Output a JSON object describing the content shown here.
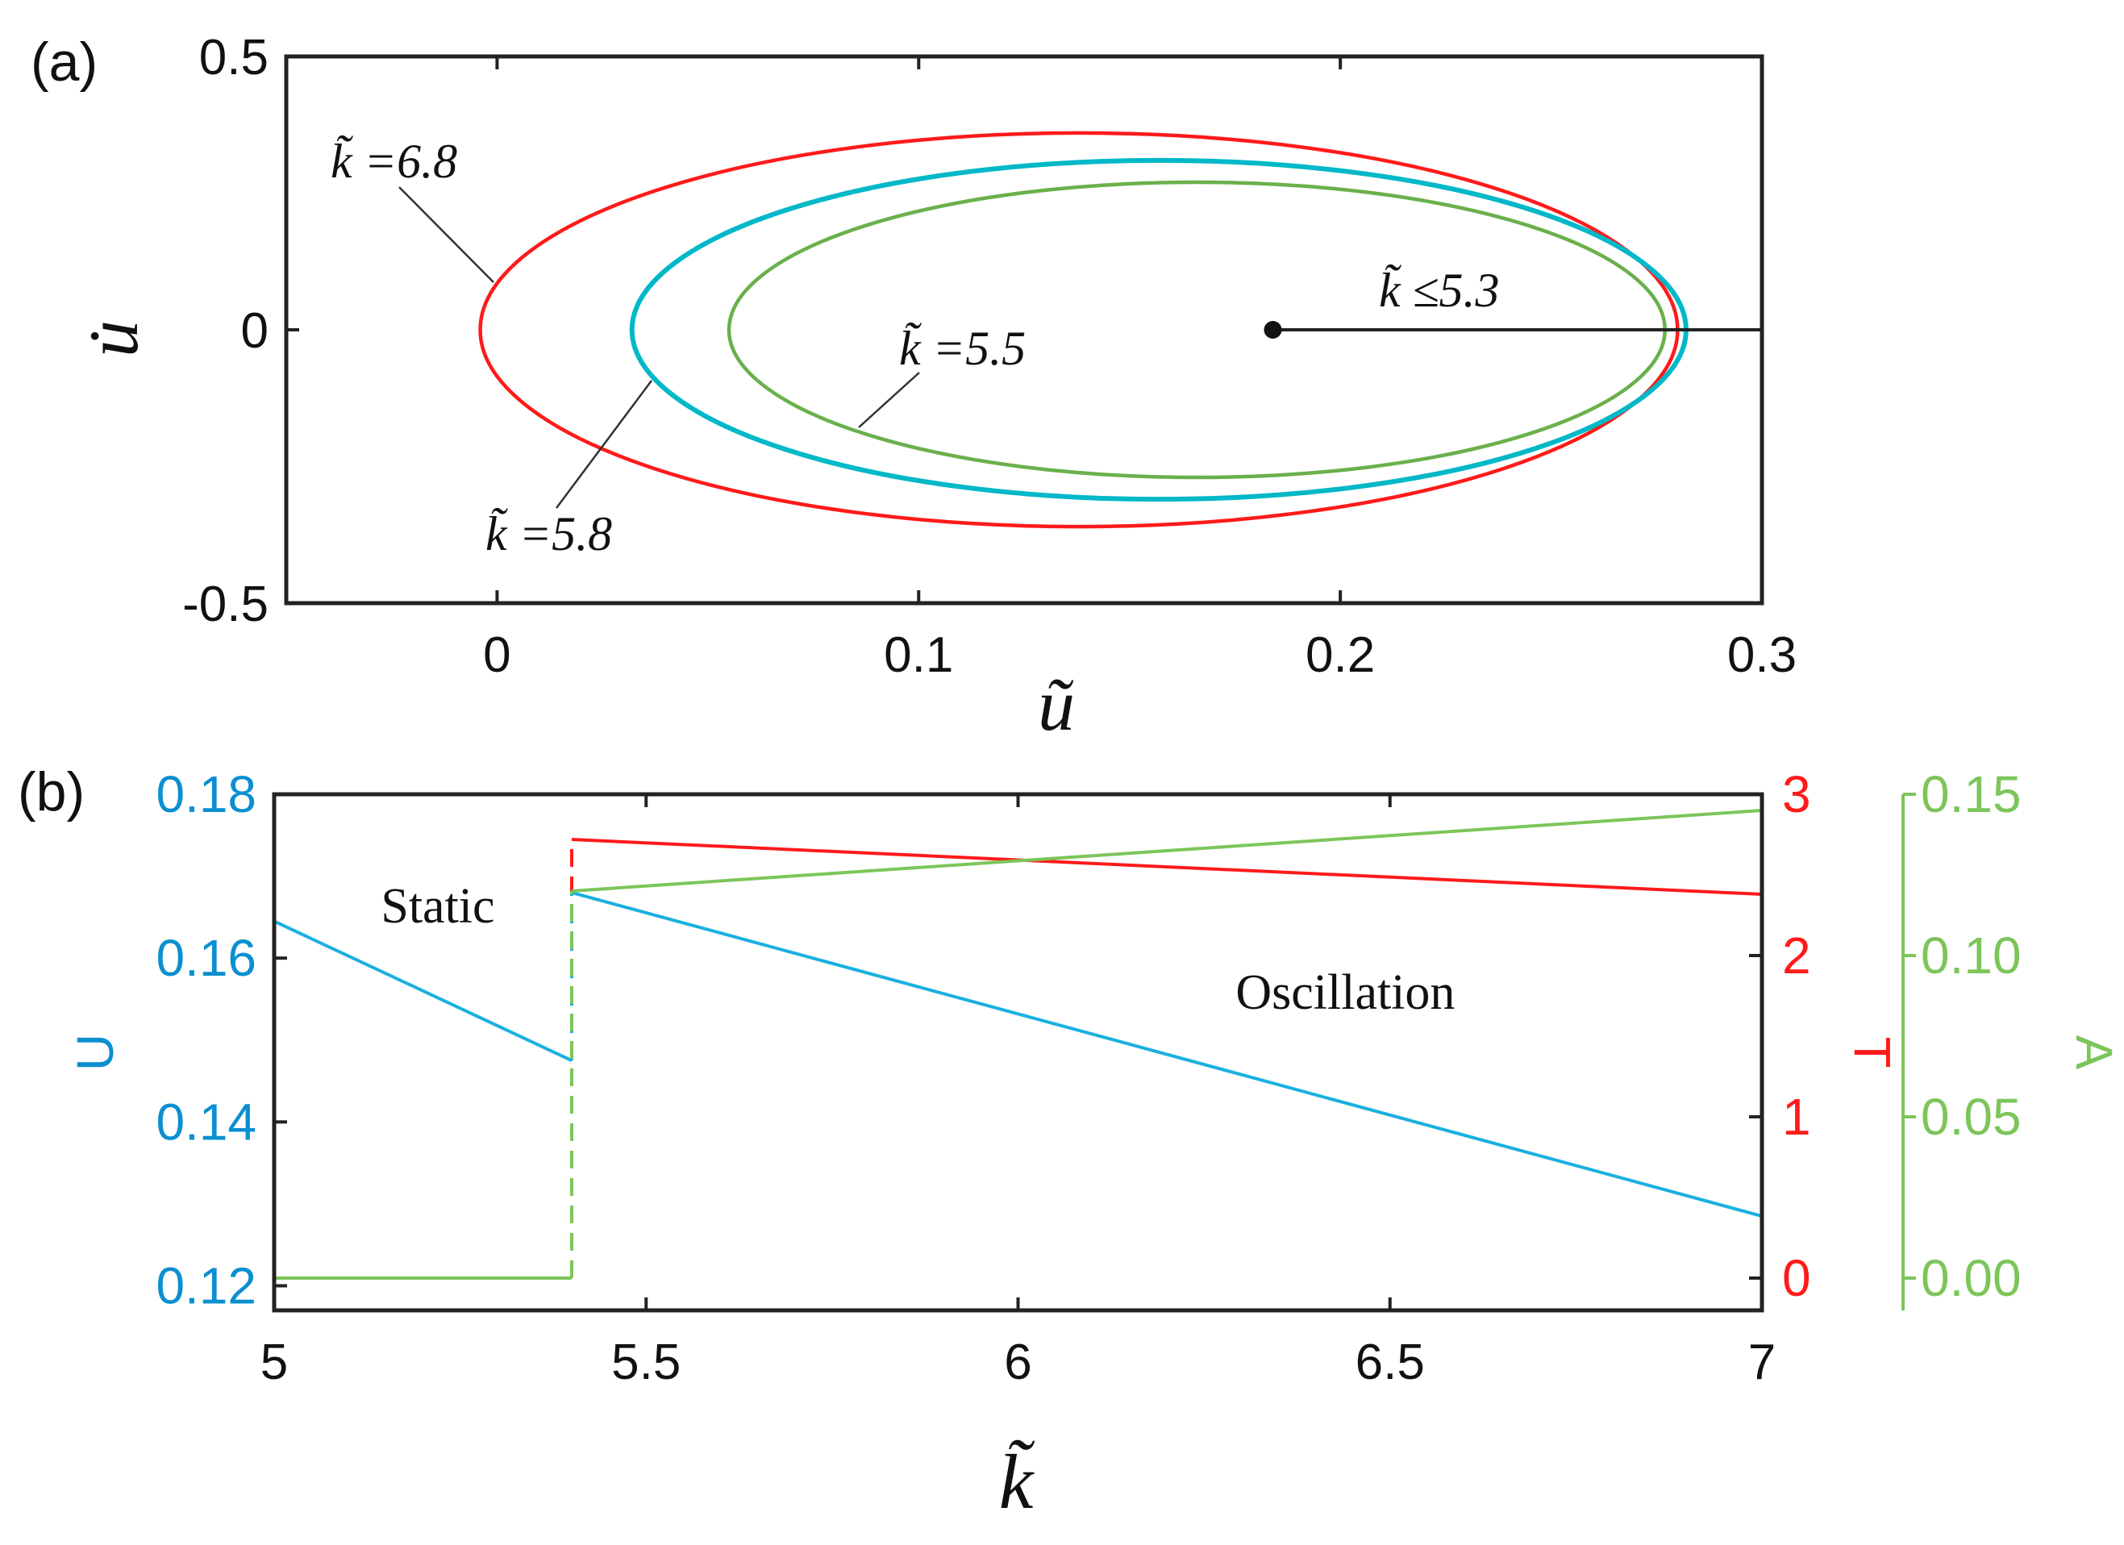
{
  "chart_data": [
    {
      "panel_label": "(a)",
      "type": "line",
      "xlabel": "ũ",
      "ylabel": "u̇",
      "xlim": [
        -0.05,
        0.3
      ],
      "ylim": [
        -0.5,
        0.5
      ],
      "x_ticks": [
        "0",
        "0.1",
        "0.2",
        "0.3"
      ],
      "y_ticks": [
        "0.5",
        "0",
        "-0.5"
      ],
      "series": [
        {
          "label": "k̃ =6.8",
          "color": "#ff1a1a",
          "center": [
            0.138,
            0.0
          ],
          "semi_axes": [
            0.142,
            0.36
          ]
        },
        {
          "label": "k̃ =5.8",
          "color": "#00b8c8",
          "center": [
            0.157,
            0.0
          ],
          "semi_axes": [
            0.125,
            0.31
          ]
        },
        {
          "label": "k̃ =5.5",
          "color": "#6ab04c",
          "center": [
            0.166,
            0.0
          ],
          "semi_axes": [
            0.111,
            0.27
          ]
        }
      ],
      "fixed_point": {
        "label": "k̃ ≤5.3",
        "x": 0.184,
        "y": 0.0,
        "line_to_x": 0.3
      }
    },
    {
      "panel_label": "(b)",
      "type": "line",
      "xlabel": "k̃",
      "xlim": [
        5,
        7
      ],
      "x_ticks": [
        "5",
        "5.5",
        "6",
        "6.5",
        "7"
      ],
      "axes": {
        "U": {
          "label": "U",
          "color": "#0a8fd0",
          "ylim": [
            0.117,
            0.18
          ],
          "ticks": [
            "0.18",
            "0.16",
            "0.14",
            "0.12"
          ]
        },
        "T": {
          "label": "T",
          "color": "#ff1a1a",
          "ylim": [
            -0.2,
            3.0
          ],
          "ticks": [
            "3",
            "2",
            "1",
            "0"
          ]
        },
        "A": {
          "label": "A",
          "color": "#7cc55a",
          "ylim": [
            -0.01,
            0.15
          ],
          "ticks": [
            "0.15",
            "0.10",
            "0.05",
            "0.00"
          ]
        }
      },
      "series": [
        {
          "name": "U",
          "axis": "U",
          "color": "#1ab0e0",
          "x": [
            5,
            5.4,
            5.4,
            7
          ],
          "y": [
            0.1645,
            0.1475,
            0.168,
            0.1285
          ]
        },
        {
          "name": "T",
          "axis": "T",
          "color": "#ff1a1a",
          "x": [
            5,
            5.4,
            5.4,
            7
          ],
          "y": [
            0,
            0,
            2.72,
            2.38
          ]
        },
        {
          "name": "A",
          "axis": "A",
          "color": "#7cc55a",
          "x": [
            5,
            5.4,
            5.4,
            7
          ],
          "y": [
            0,
            0,
            0.12,
            0.145
          ]
        }
      ],
      "annotations": [
        {
          "text": "Static",
          "x": 5.22,
          "y_axis": "U",
          "y": 0.1663
        },
        {
          "text": "Oscillation",
          "x": 6.44,
          "y_axis": "U",
          "y": 0.1558
        }
      ]
    }
  ]
}
